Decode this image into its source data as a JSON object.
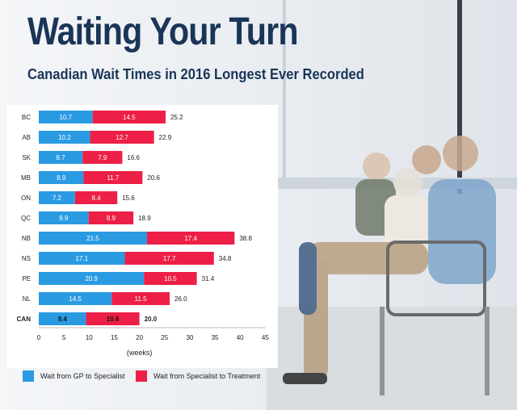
{
  "header": {
    "title": "Waiting Your Turn",
    "subtitle": "Canadian Wait Times in 2016 Longest Ever Recorded"
  },
  "colors": {
    "gp": "#2a9be3",
    "specialist": "#ee1f47",
    "panel": "#ffffff",
    "text": "#1a3557"
  },
  "chart_data": {
    "type": "bar",
    "orientation": "horizontal",
    "stacked": true,
    "categories": [
      "BC",
      "AB",
      "SK",
      "MB",
      "ON",
      "QC",
      "NB",
      "NS",
      "PE",
      "NL",
      "CAN"
    ],
    "series": [
      {
        "name": "Wait from GP to Specialist",
        "values": [
          10.7,
          10.2,
          8.7,
          8.9,
          7.2,
          9.9,
          21.5,
          17.1,
          20.9,
          14.5,
          9.4
        ],
        "labels": [
          "10.7",
          "10.2",
          "8.7",
          "8.9",
          "7.2",
          "9.9",
          "21.5",
          "17.1",
          "20.9",
          "14.5",
          "9.4"
        ]
      },
      {
        "name": "Wait from Specialist to Treatment",
        "values": [
          14.5,
          12.7,
          7.9,
          11.7,
          8.4,
          8.9,
          17.4,
          17.7,
          10.5,
          11.5,
          10.6
        ],
        "labels": [
          "14.5",
          "12.7",
          "7.9",
          "11.7",
          "8.4",
          "8.9",
          "17.4",
          "17.7",
          "10.5",
          "11.5",
          "10.6"
        ]
      }
    ],
    "totals": [
      25.2,
      22.9,
      16.6,
      20.6,
      15.6,
      18.9,
      38.8,
      34.8,
      31.4,
      26.0,
      20.0
    ],
    "total_labels": [
      "25.2",
      "22.9",
      "16.6",
      "20.6",
      "15.6",
      "18.9",
      "38.8",
      "34.8",
      "31.4",
      "26.0",
      "20.0"
    ],
    "xlim": [
      0,
      45
    ],
    "xticks": [
      0,
      5,
      10,
      15,
      20,
      25,
      30,
      35,
      40,
      45
    ],
    "xtick_labels": [
      "0",
      "5",
      "10",
      "15",
      "20",
      "25",
      "30",
      "35",
      "40",
      "45"
    ],
    "xlabel": "(weeks)",
    "legend_position": "bottom",
    "emphasized_category": "CAN"
  }
}
